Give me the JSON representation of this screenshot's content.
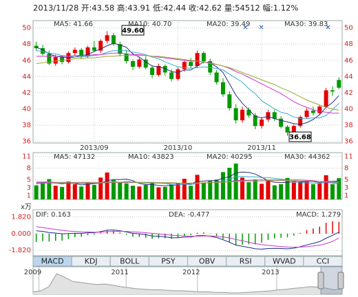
{
  "header": "2013/11/28 开:43.58 高:43.91 低:42.44 收:42.62 量:54512 幅:1.12%",
  "tabs": [
    "MACD",
    "KDJ",
    "BOLL",
    "PSY",
    "OBV",
    "RSI",
    "WVAD",
    "CCI"
  ],
  "chart_data": [
    {
      "type": "candlestick",
      "categories": [
        null,
        null,
        null,
        null,
        null,
        null,
        null,
        null,
        null,
        "2013/09",
        null,
        null,
        null,
        null,
        null,
        null,
        null,
        null,
        null,
        null,
        null,
        null,
        "2013/10",
        null,
        null,
        null,
        null,
        null,
        null,
        null,
        null,
        null,
        null,
        null,
        null,
        "2013/11",
        null,
        null,
        null,
        null,
        null,
        null,
        null,
        null,
        null,
        null,
        null,
        null
      ],
      "candles": [
        [
          47.8,
          48.3,
          47.2,
          47.5
        ],
        [
          47.5,
          47.9,
          46.6,
          46.8
        ],
        [
          46.8,
          47.2,
          45.4,
          45.6
        ],
        [
          45.6,
          46.7,
          45.3,
          46.4
        ],
        [
          46.4,
          46.6,
          45.5,
          45.8
        ],
        [
          45.8,
          47.1,
          45.6,
          46.9
        ],
        [
          46.9,
          47.6,
          46.5,
          47.3
        ],
        [
          47.3,
          47.5,
          46.2,
          46.5
        ],
        [
          46.5,
          47.8,
          46.3,
          47.6
        ],
        [
          47.6,
          48.4,
          47.0,
          47.2
        ],
        [
          47.2,
          48.6,
          46.9,
          48.4
        ],
        [
          48.4,
          49.6,
          48.1,
          49.1
        ],
        [
          49.1,
          49.4,
          47.8,
          48.0
        ],
        [
          48.0,
          48.3,
          46.5,
          46.8
        ],
        [
          46.8,
          47.3,
          45.6,
          45.9
        ],
        [
          45.9,
          46.1,
          44.8,
          45.2
        ],
        [
          45.2,
          46.4,
          45.0,
          46.1
        ],
        [
          46.1,
          46.5,
          44.9,
          45.1
        ],
        [
          45.1,
          45.4,
          43.8,
          44.2
        ],
        [
          44.2,
          45.6,
          44.0,
          45.3
        ],
        [
          45.3,
          45.5,
          44.1,
          44.5
        ],
        [
          44.5,
          44.9,
          43.4,
          43.7
        ],
        [
          43.7,
          45.1,
          43.5,
          44.9
        ],
        [
          44.9,
          46.0,
          44.6,
          45.8
        ],
        [
          45.8,
          46.3,
          45.0,
          45.3
        ],
        [
          45.3,
          47.2,
          45.1,
          46.9
        ],
        [
          46.9,
          47.1,
          45.6,
          45.9
        ],
        [
          45.9,
          46.2,
          44.2,
          44.5
        ],
        [
          44.5,
          44.8,
          43.0,
          43.3
        ],
        [
          43.3,
          43.8,
          41.5,
          41.8
        ],
        [
          41.8,
          42.2,
          39.8,
          40.1
        ],
        [
          40.1,
          40.6,
          38.2,
          38.6
        ],
        [
          38.6,
          40.3,
          38.3,
          39.9
        ],
        [
          39.9,
          40.2,
          38.9,
          39.2
        ],
        [
          39.2,
          39.5,
          37.5,
          37.9
        ],
        [
          37.9,
          39.0,
          37.6,
          38.7
        ],
        [
          38.7,
          39.9,
          38.4,
          39.6
        ],
        [
          39.6,
          39.9,
          38.5,
          38.8
        ],
        [
          38.8,
          39.1,
          37.6,
          37.8
        ],
        [
          37.8,
          38.0,
          36.68,
          37.1
        ],
        [
          37.1,
          38.1,
          36.9,
          37.9
        ],
        [
          37.9,
          39.2,
          37.7,
          39.0
        ],
        [
          39.0,
          40.1,
          38.8,
          39.8
        ],
        [
          39.8,
          40.3,
          39.2,
          39.5
        ],
        [
          39.5,
          40.5,
          39.3,
          40.3
        ],
        [
          40.3,
          42.6,
          40.1,
          42.3
        ],
        [
          42.3,
          42.8,
          41.6,
          42.15
        ],
        [
          43.58,
          43.91,
          42.44,
          42.62
        ]
      ],
      "up_color": "#e60000",
      "down_color": "#009900",
      "series": [
        {
          "name": "MA5: 41.66",
          "color": "#2a2a80",
          "values": [
            47.6,
            47.3,
            46.8,
            46.5,
            46.4,
            46.3,
            46.4,
            46.6,
            46.7,
            47.1,
            47.4,
            47.8,
            48.1,
            47.9,
            47.6,
            46.8,
            46.4,
            45.8,
            45.3,
            45.2,
            45.0,
            44.6,
            44.5,
            44.8,
            44.8,
            45.3,
            45.8,
            45.7,
            45.2,
            44.5,
            43.1,
            41.7,
            40.7,
            39.9,
            39.1,
            38.9,
            39.1,
            38.8,
            38.6,
            38.4,
            38.2,
            38.1,
            38.3,
            38.7,
            39.3,
            40.2,
            40.8,
            41.66
          ]
        },
        {
          "name": "MA10: 40.70",
          "color": "#33aacc",
          "values": [
            47.2,
            47.1,
            46.9,
            46.8,
            46.6,
            46.5,
            46.4,
            46.4,
            46.5,
            46.6,
            46.7,
            47.0,
            47.2,
            47.2,
            47.2,
            47.0,
            46.9,
            46.7,
            46.4,
            46.2,
            45.8,
            45.5,
            45.2,
            45.1,
            45.0,
            45.1,
            45.2,
            45.1,
            45.0,
            44.8,
            44.3,
            43.8,
            43.3,
            42.5,
            41.9,
            41.0,
            40.5,
            40.0,
            39.6,
            39.4,
            39.0,
            38.8,
            38.8,
            38.9,
            38.9,
            39.2,
            39.9,
            40.7
          ]
        },
        {
          "name": "MA20: 39.49",
          "color": "#cc33cc",
          "values": [
            46.5,
            46.5,
            46.5,
            46.5,
            46.5,
            46.5,
            46.6,
            46.6,
            46.6,
            46.7,
            46.7,
            46.8,
            46.9,
            46.9,
            46.8,
            46.7,
            46.7,
            46.6,
            46.5,
            46.4,
            46.3,
            46.2,
            46.1,
            46.0,
            45.9,
            45.9,
            45.8,
            45.7,
            45.5,
            45.3,
            45.0,
            44.6,
            44.3,
            43.9,
            43.5,
            43.1,
            42.7,
            42.3,
            41.9,
            41.4,
            40.9,
            40.5,
            40.2,
            39.9,
            39.7,
            39.6,
            39.5,
            39.49
          ]
        },
        {
          "name": "MA30: 39.83",
          "color": "#99a833",
          "values": [
            45.6,
            45.7,
            45.8,
            45.9,
            46.0,
            46.1,
            46.2,
            46.2,
            46.3,
            46.3,
            46.4,
            46.5,
            46.5,
            46.6,
            46.6,
            46.6,
            46.6,
            46.6,
            46.5,
            46.5,
            46.4,
            46.3,
            46.2,
            46.1,
            46.0,
            45.9,
            45.8,
            45.6,
            45.5,
            45.3,
            45.1,
            44.8,
            44.5,
            44.2,
            43.9,
            43.6,
            43.3,
            43.0,
            42.6,
            42.3,
            41.9,
            41.5,
            41.1,
            40.8,
            40.5,
            40.2,
            40.0,
            39.83
          ]
        }
      ],
      "annotations": [
        "49.60",
        "36.68"
      ],
      "ylim": [
        35.8,
        50.9
      ],
      "yticks": [
        36,
        38,
        40,
        42,
        44,
        46,
        48,
        50
      ],
      "grid": true
    },
    {
      "type": "bar",
      "unit_label": "x万",
      "values": [
        3.6,
        4.4,
        5.2,
        3.5,
        3.2,
        4.6,
        3.9,
        3.3,
        4.4,
        3.7,
        5.6,
        6.9,
        5.0,
        4.5,
        4.1,
        3.5,
        3.3,
        3.7,
        4.2,
        3.1,
        3.2,
        3.8,
        4.1,
        5.3,
        3.5,
        6.3,
        4.2,
        4.7,
        5.1,
        7.0,
        8.1,
        9.2,
        5.6,
        4.4,
        5.1,
        4.0,
        5.0,
        3.6,
        3.9,
        5.5,
        4.3,
        4.6,
        4.8,
        3.9,
        4.1,
        6.2,
        3.9,
        5.45
      ],
      "series": [
        {
          "name": "MA5: 47132",
          "color": "#2a2a80",
          "values": [
            4.0,
            4.1,
            4.3,
            4.2,
            4.0,
            4.2,
            4.1,
            3.7,
            3.9,
            4.0,
            4.2,
            4.8,
            5.1,
            5.1,
            5.2,
            4.8,
            4.1,
            3.8,
            3.8,
            3.6,
            3.5,
            3.6,
            3.7,
            3.9,
            4.0,
            4.6,
            4.7,
            4.8,
            4.8,
            5.5,
            5.8,
            6.8,
            7.0,
            6.9,
            6.5,
            5.7,
            4.8,
            4.4,
            4.3,
            4.4,
            4.5,
            4.4,
            4.6,
            4.6,
            4.3,
            4.7,
            4.6,
            4.71
          ]
        },
        {
          "name": "MA10: 43823",
          "color": "#33aacc",
          "values": [
            4.1,
            4.1,
            4.2,
            4.2,
            4.2,
            4.2,
            4.2,
            4.1,
            4.1,
            4.1,
            4.1,
            4.4,
            4.6,
            4.4,
            4.6,
            4.5,
            4.4,
            4.4,
            4.4,
            4.3,
            4.1,
            3.8,
            3.7,
            3.9,
            3.8,
            4.1,
            4.2,
            4.3,
            4.4,
            4.8,
            5.2,
            5.8,
            5.9,
            5.8,
            5.8,
            5.6,
            5.6,
            5.4,
            5.2,
            5.0,
            4.7,
            4.3,
            4.2,
            4.2,
            4.1,
            4.4,
            4.3,
            4.38
          ]
        },
        {
          "name": "MA20: 40295",
          "color": "#cc33cc",
          "values": [
            4.3,
            4.3,
            4.3,
            4.2,
            4.2,
            4.2,
            4.2,
            4.2,
            4.2,
            4.2,
            4.2,
            4.3,
            4.3,
            4.3,
            4.3,
            4.3,
            4.3,
            4.2,
            4.2,
            4.2,
            4.1,
            4.1,
            4.1,
            4.1,
            4.1,
            4.2,
            4.2,
            4.3,
            4.3,
            4.4,
            4.6,
            4.8,
            4.9,
            4.9,
            5.0,
            5.0,
            5.0,
            5.0,
            5.0,
            5.0,
            5.0,
            5.0,
            4.9,
            4.8,
            4.6,
            4.4,
            4.2,
            4.03
          ]
        },
        {
          "name": "MA30: 44362",
          "color": "#99a833",
          "values": [
            4.5,
            4.5,
            4.5,
            4.4,
            4.4,
            4.4,
            4.4,
            4.4,
            4.4,
            4.4,
            4.4,
            4.4,
            4.4,
            4.4,
            4.4,
            4.4,
            4.3,
            4.3,
            4.3,
            4.3,
            4.3,
            4.3,
            4.2,
            4.2,
            4.2,
            4.2,
            4.3,
            4.3,
            4.3,
            4.4,
            4.5,
            4.6,
            4.7,
            4.7,
            4.7,
            4.7,
            4.8,
            4.8,
            4.8,
            4.8,
            4.8,
            4.7,
            4.7,
            4.7,
            4.6,
            4.6,
            4.5,
            4.44
          ]
        }
      ],
      "ylim": [
        0,
        12
      ],
      "yticks": [
        1,
        3,
        5,
        8,
        11
      ],
      "grid": true
    },
    {
      "type": "macd",
      "histogram": {
        "name": "MACD: 1.279",
        "values": [
          -0.9,
          -0.82,
          -0.86,
          -0.78,
          -0.76,
          -0.58,
          -0.38,
          -0.34,
          -0.18,
          -0.12,
          0.1,
          0.34,
          0.3,
          0.12,
          -0.12,
          -0.34,
          -0.36,
          -0.44,
          -0.56,
          -0.5,
          -0.5,
          -0.56,
          -0.44,
          -0.24,
          -0.16,
          0.1,
          0.12,
          -0.04,
          -0.26,
          -0.58,
          -0.92,
          -1.24,
          -1.2,
          -1.16,
          -1.16,
          -0.98,
          -0.68,
          -0.52,
          -0.44,
          -0.4,
          -0.22,
          0.08,
          0.38,
          0.56,
          0.76,
          1.18,
          1.34,
          1.279
        ]
      },
      "series": [
        {
          "name": "DIF: 0.163",
          "color": "#1c2a8c",
          "values": [
            0.3,
            0.25,
            0.12,
            0.06,
            -0.02,
            0.0,
            0.05,
            0.03,
            0.09,
            0.1,
            0.22,
            0.38,
            0.4,
            0.32,
            0.18,
            0.03,
            -0.02,
            -0.12,
            -0.25,
            -0.28,
            -0.35,
            -0.45,
            -0.45,
            -0.38,
            -0.36,
            -0.22,
            -0.2,
            -0.28,
            -0.42,
            -0.65,
            -0.93,
            -1.25,
            -1.38,
            -1.5,
            -1.65,
            -1.68,
            -1.62,
            -1.6,
            -1.62,
            -1.65,
            -1.58,
            -1.42,
            -1.22,
            -1.06,
            -0.86,
            -0.5,
            -0.18,
            0.163
          ]
        },
        {
          "name": "DEA: -0.477",
          "color": "#cc33cc",
          "values": [
            0.75,
            0.66,
            0.55,
            0.45,
            0.36,
            0.29,
            0.24,
            0.2,
            0.18,
            0.16,
            0.17,
            0.21,
            0.25,
            0.26,
            0.24,
            0.2,
            0.16,
            0.1,
            0.03,
            -0.03,
            -0.1,
            -0.17,
            -0.23,
            -0.26,
            -0.28,
            -0.27,
            -0.26,
            -0.26,
            -0.29,
            -0.36,
            -0.47,
            -0.63,
            -0.78,
            -0.92,
            -1.07,
            -1.19,
            -1.28,
            -1.34,
            -1.4,
            -1.45,
            -1.47,
            -1.46,
            -1.41,
            -1.34,
            -1.24,
            -1.09,
            -0.85,
            -0.477
          ]
        }
      ],
      "up_color": "#e60000",
      "down_color": "#009900",
      "ylim": [
        -2.4,
        2.6
      ],
      "yticks": [
        {
          "value": 1.82,
          "label": "1.820"
        },
        {
          "value": 0,
          "label": "0.000"
        },
        {
          "value": -1.82,
          "label": "-1.820"
        }
      ]
    },
    {
      "type": "area",
      "categories": [
        null,
        "2009",
        null,
        null,
        null,
        null,
        null,
        null,
        null,
        null,
        null,
        null,
        "2011",
        null,
        null,
        null,
        null,
        null,
        null,
        null,
        null,
        "2012",
        null,
        null,
        null,
        null,
        null,
        null,
        null,
        null,
        null,
        "2013",
        null,
        null,
        null,
        null,
        null,
        null,
        null,
        null
      ],
      "values": [
        20,
        22,
        30,
        55,
        48,
        40,
        38,
        36,
        34,
        35,
        33,
        30,
        28,
        26,
        25,
        24,
        24,
        23,
        22,
        22,
        21,
        20,
        20,
        19,
        19,
        18,
        18,
        19,
        20,
        21,
        22,
        24,
        25,
        27,
        28,
        30,
        29,
        27,
        24,
        26
      ],
      "color": "#9a9a9a"
    }
  ]
}
